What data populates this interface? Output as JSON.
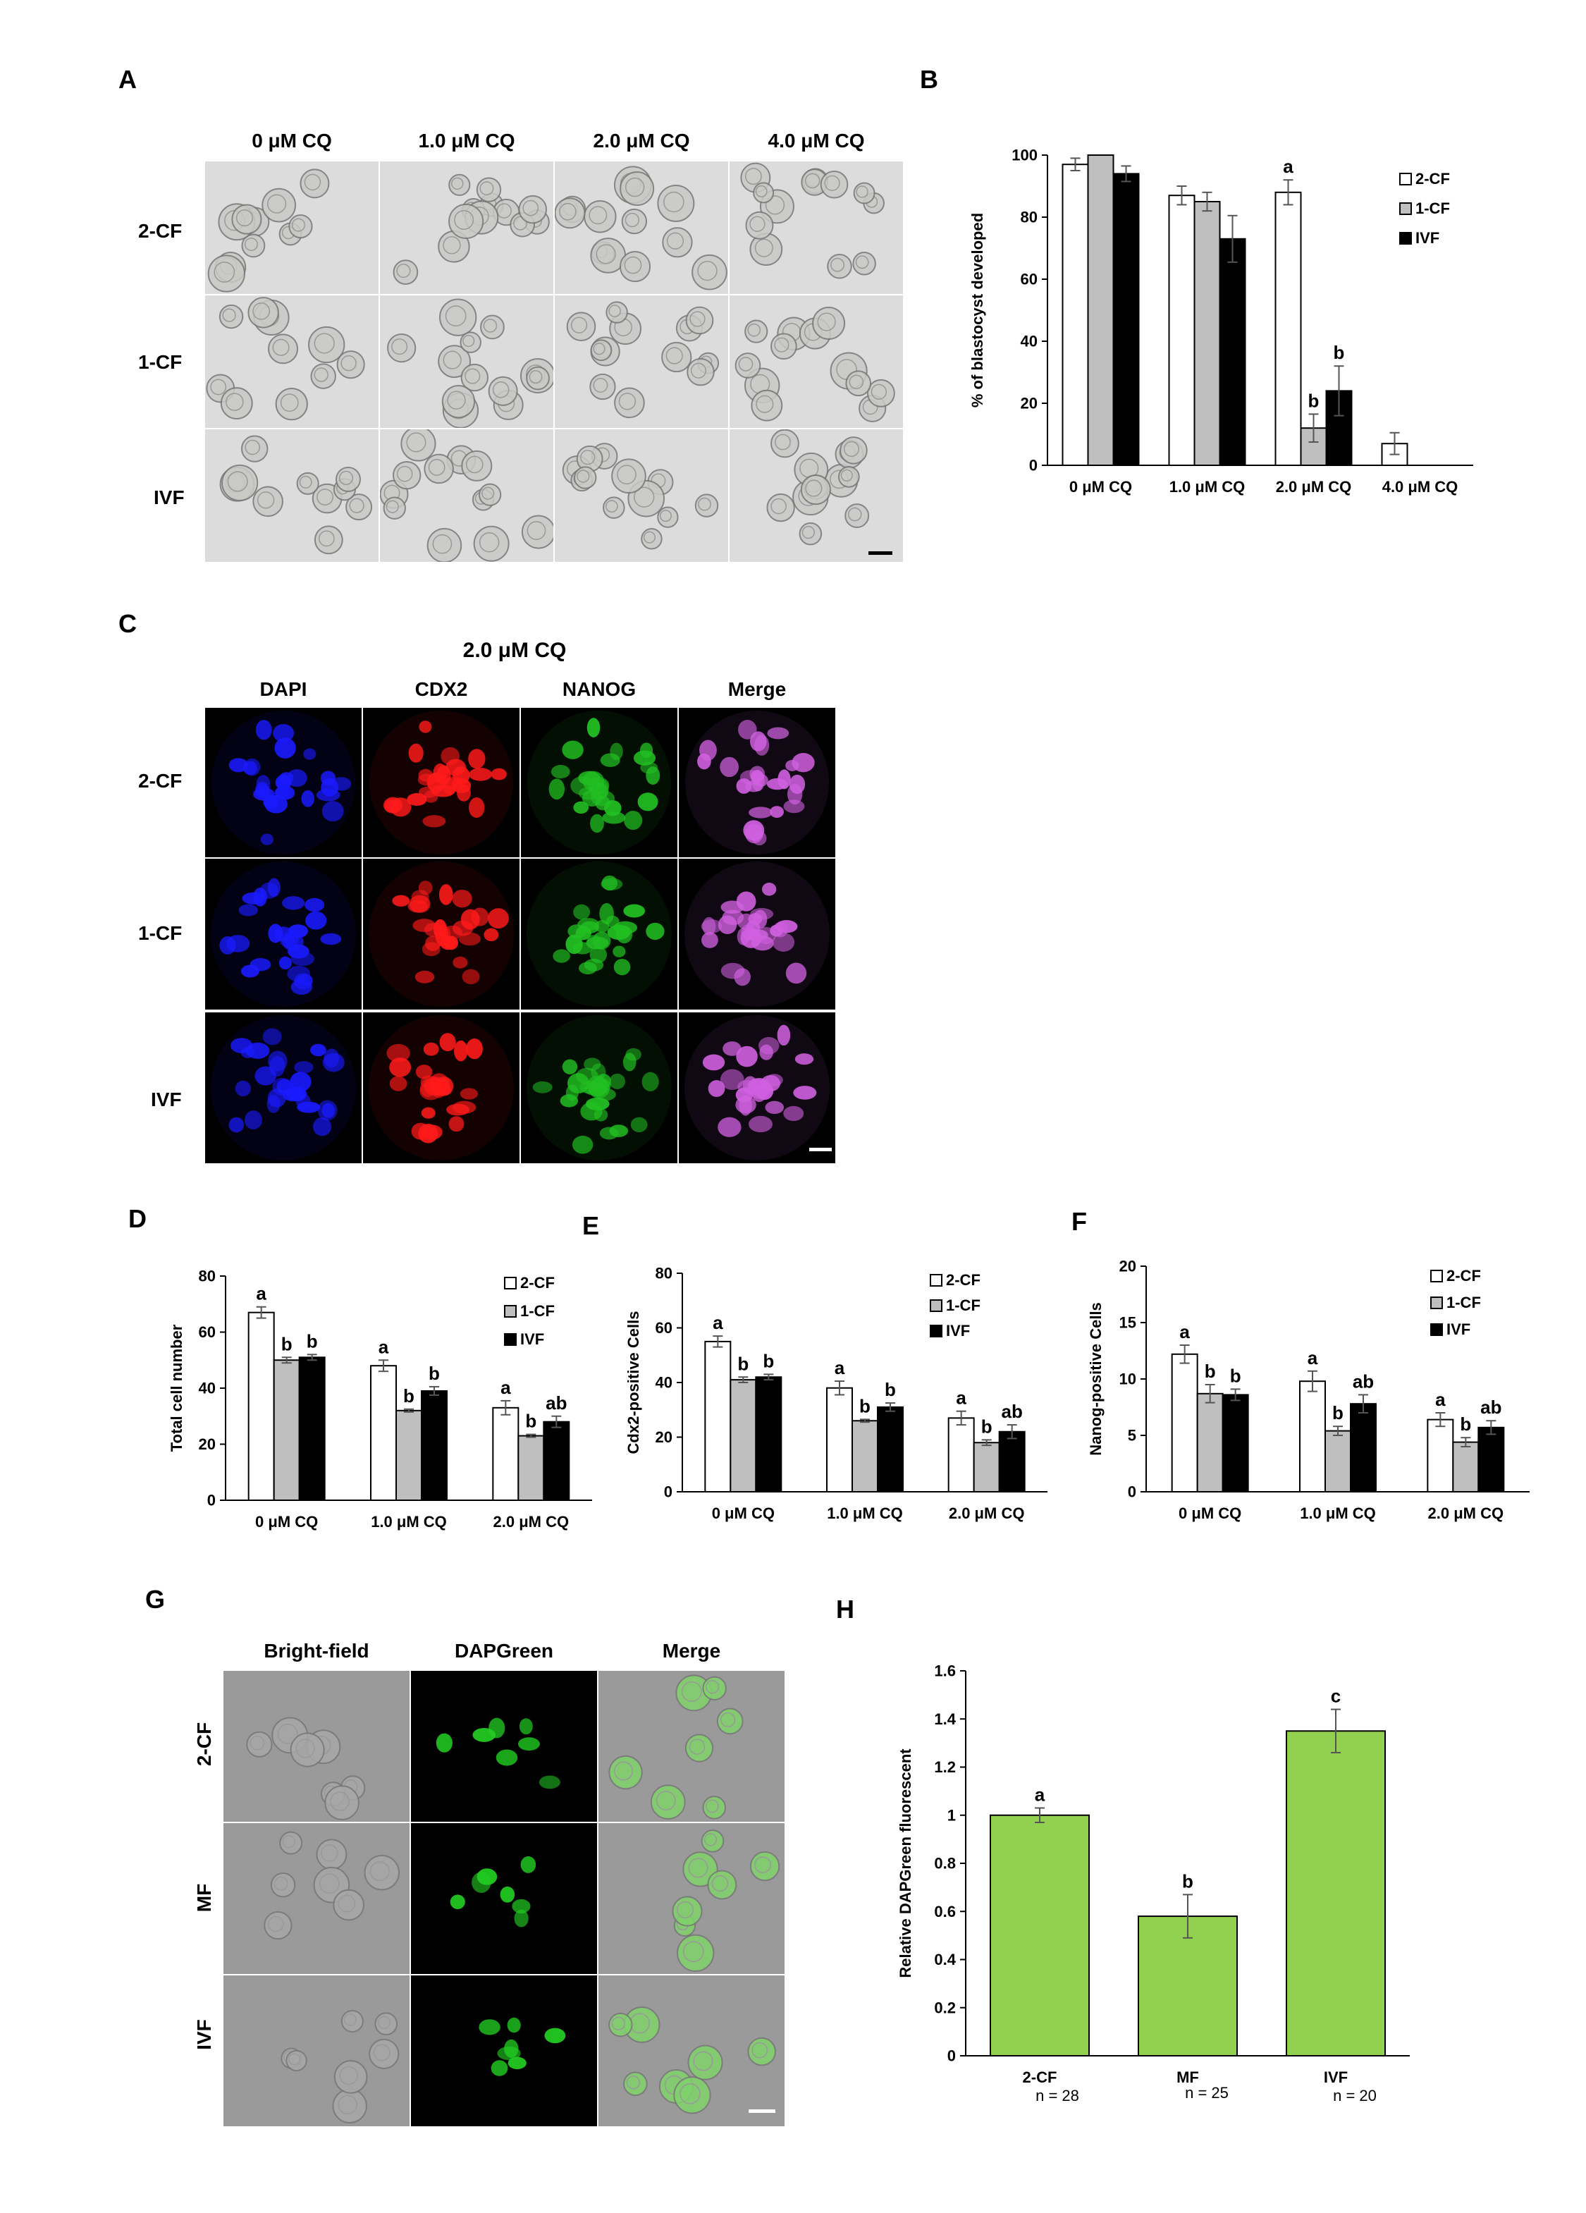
{
  "panels": {
    "A": {
      "letter": "A",
      "col_headers": [
        "0 μM CQ",
        "1.0 μM CQ",
        "2.0 μM CQ",
        "4.0 μM CQ"
      ],
      "row_labels": [
        "2-CF",
        "1-CF",
        "IVF"
      ]
    },
    "C": {
      "letter": "C",
      "title": "2.0 μM CQ",
      "col_headers": [
        "DAPI",
        "CDX2",
        "NANOG",
        "Merge"
      ],
      "row_labels": [
        "2-CF",
        "1-CF",
        "IVF"
      ],
      "channel_colors": [
        "#1a1aff",
        "#ff1a1a",
        "#22c022",
        "#d060e0"
      ]
    },
    "G": {
      "letter": "G",
      "col_headers": [
        "Bright-field",
        "DAPGreen",
        "Merge"
      ],
      "row_labels": [
        "2-CF",
        "MF",
        "IVF"
      ]
    }
  },
  "chart_data": [
    {
      "id": "B",
      "letter": "B",
      "type": "bar",
      "ylabel": "% of blastocyst developed",
      "ylim": [
        0,
        100
      ],
      "yticks": [
        0,
        20,
        40,
        60,
        80,
        100
      ],
      "categories": [
        "0 μM CQ",
        "1.0 μM CQ",
        "2.0 μM CQ",
        "4.0 μM CQ"
      ],
      "series": [
        {
          "name": "2-CF",
          "color": "#ffffff",
          "values": [
            97,
            87,
            88,
            7
          ],
          "errors": [
            2,
            3,
            4,
            3.5
          ],
          "letters": [
            "",
            "",
            "a",
            ""
          ]
        },
        {
          "name": "1-CF",
          "color": "#bfbfbf",
          "values": [
            100,
            85,
            12,
            0
          ],
          "errors": [
            0,
            3,
            4.5,
            0
          ],
          "letters": [
            "",
            "",
            "b",
            ""
          ]
        },
        {
          "name": "IVF",
          "color": "#000000",
          "values": [
            94,
            73,
            24,
            0
          ],
          "errors": [
            2.5,
            7.5,
            8,
            0
          ],
          "letters": [
            "",
            "",
            "b",
            ""
          ]
        }
      ],
      "legend": "top-right"
    },
    {
      "id": "D",
      "letter": "D",
      "type": "bar",
      "ylabel": "Total cell number",
      "ylim": [
        0,
        80
      ],
      "yticks": [
        0,
        20,
        40,
        60,
        80
      ],
      "categories": [
        "0 μM CQ",
        "1.0 μM CQ",
        "2.0 μM CQ"
      ],
      "series": [
        {
          "name": "2-CF",
          "color": "#ffffff",
          "values": [
            67,
            48,
            33
          ],
          "errors": [
            2,
            2,
            2.5
          ],
          "letters": [
            "a",
            "a",
            "a"
          ]
        },
        {
          "name": "1-CF",
          "color": "#bfbfbf",
          "values": [
            50,
            32,
            23
          ],
          "errors": [
            1,
            0.5,
            0.5
          ],
          "letters": [
            "b",
            "b",
            "b"
          ]
        },
        {
          "name": "IVF",
          "color": "#000000",
          "values": [
            51,
            39,
            28
          ],
          "errors": [
            1,
            1.5,
            2
          ],
          "letters": [
            "b",
            "b",
            "ab"
          ]
        }
      ],
      "legend": "top-right"
    },
    {
      "id": "E",
      "letter": "E",
      "type": "bar",
      "ylabel": "Cdx2-positive Cells",
      "ylim": [
        0,
        80
      ],
      "yticks": [
        0,
        20,
        40,
        60,
        80
      ],
      "categories": [
        "0 μM CQ",
        "1.0 μM CQ",
        "2.0 μM CQ"
      ],
      "series": [
        {
          "name": "2-CF",
          "color": "#ffffff",
          "values": [
            55,
            38,
            27
          ],
          "errors": [
            2,
            2.5,
            2.5
          ],
          "letters": [
            "a",
            "a",
            "a"
          ]
        },
        {
          "name": "1-CF",
          "color": "#bfbfbf",
          "values": [
            41,
            26,
            18
          ],
          "errors": [
            1,
            0.5,
            1
          ],
          "letters": [
            "b",
            "b",
            "b"
          ]
        },
        {
          "name": "IVF",
          "color": "#000000",
          "values": [
            42,
            31,
            22
          ],
          "errors": [
            1,
            1.5,
            2.5
          ],
          "letters": [
            "b",
            "b",
            "ab"
          ]
        }
      ],
      "legend": "top-right"
    },
    {
      "id": "F",
      "letter": "F",
      "type": "bar",
      "ylabel": "Nanog-positive Cells",
      "ylim": [
        0,
        20
      ],
      "yticks": [
        0,
        5,
        10,
        15,
        20
      ],
      "categories": [
        "0 μM CQ",
        "1.0 μM CQ",
        "2.0 μM CQ"
      ],
      "series": [
        {
          "name": "2-CF",
          "color": "#ffffff",
          "values": [
            12.2,
            9.8,
            6.4
          ],
          "errors": [
            0.8,
            0.9,
            0.6
          ],
          "letters": [
            "a",
            "a",
            "a"
          ]
        },
        {
          "name": "1-CF",
          "color": "#bfbfbf",
          "values": [
            8.7,
            5.4,
            4.4
          ],
          "errors": [
            0.8,
            0.4,
            0.4
          ],
          "letters": [
            "b",
            "b",
            "b"
          ]
        },
        {
          "name": "IVF",
          "color": "#000000",
          "values": [
            8.6,
            7.8,
            5.7
          ],
          "errors": [
            0.5,
            0.8,
            0.6
          ],
          "letters": [
            "b",
            "ab",
            "ab"
          ]
        }
      ],
      "legend": "top-right"
    },
    {
      "id": "H",
      "letter": "H",
      "type": "bar",
      "ylabel": "Relative DAPGreen fluorescent",
      "ylim": [
        0,
        1.6
      ],
      "yticks": [
        "0",
        "0.2",
        "0.4",
        "0.6",
        "0.8",
        "1",
        "1.2",
        "1.4",
        "1.6"
      ],
      "categories": [
        "2-CF",
        "MF",
        "IVF"
      ],
      "n_labels": [
        "n = 28",
        "n = 25",
        "n = 20"
      ],
      "series": [
        {
          "color": "#92d050",
          "values": [
            1.0,
            0.58,
            1.35
          ],
          "errors": [
            0.03,
            0.09,
            0.09
          ],
          "letters": [
            "a",
            "b",
            "c"
          ]
        }
      ]
    }
  ]
}
